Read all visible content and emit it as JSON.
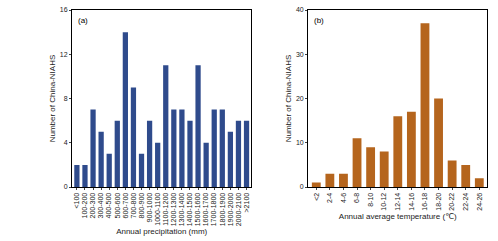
{
  "chart_data": [
    {
      "type": "bar",
      "title": "(a)",
      "x_label": "Annual precipitation (mm)",
      "y_label": "Number of China-NIAHS",
      "categories": [
        "<100",
        "100-200",
        "200-300",
        "300-400",
        "400-500",
        "500-600",
        "600-700",
        "700-800",
        "800-900",
        "900-1000",
        "1000-1100",
        "1100-1200",
        "1200-1300",
        "1300-1400",
        "1400-1500",
        "1500-1600",
        "1600-1700",
        "1700-1800",
        "1800-1900",
        "1900-2000",
        "2000-2100",
        ">2100"
      ],
      "values": [
        2,
        2,
        7,
        5,
        3,
        6,
        14,
        9,
        3,
        6,
        4,
        11,
        7,
        7,
        6,
        11,
        4,
        7,
        7,
        5,
        6,
        6
      ],
      "color": "#2f4b8c",
      "ylim": [
        0,
        16
      ],
      "yticks": [
        0,
        4,
        8,
        12,
        16
      ],
      "grid": false
    },
    {
      "type": "bar",
      "title": "(b)",
      "x_label": "Annual average temperature (℃)",
      "y_label": "Number of China-NIAHS",
      "categories": [
        "<2",
        "2-4",
        "4-6",
        "6-8",
        "8-10",
        "10-12",
        "12-14",
        "14-16",
        "16-18",
        "18-20",
        "20-22",
        "22-24",
        "24-26"
      ],
      "values": [
        1,
        3,
        3,
        11,
        9,
        8,
        16,
        17,
        37,
        20,
        6,
        5,
        2
      ],
      "color": "#b5651d",
      "ylim": [
        0,
        40
      ],
      "yticks": [
        0,
        10,
        20,
        30,
        40
      ],
      "grid": false
    }
  ]
}
